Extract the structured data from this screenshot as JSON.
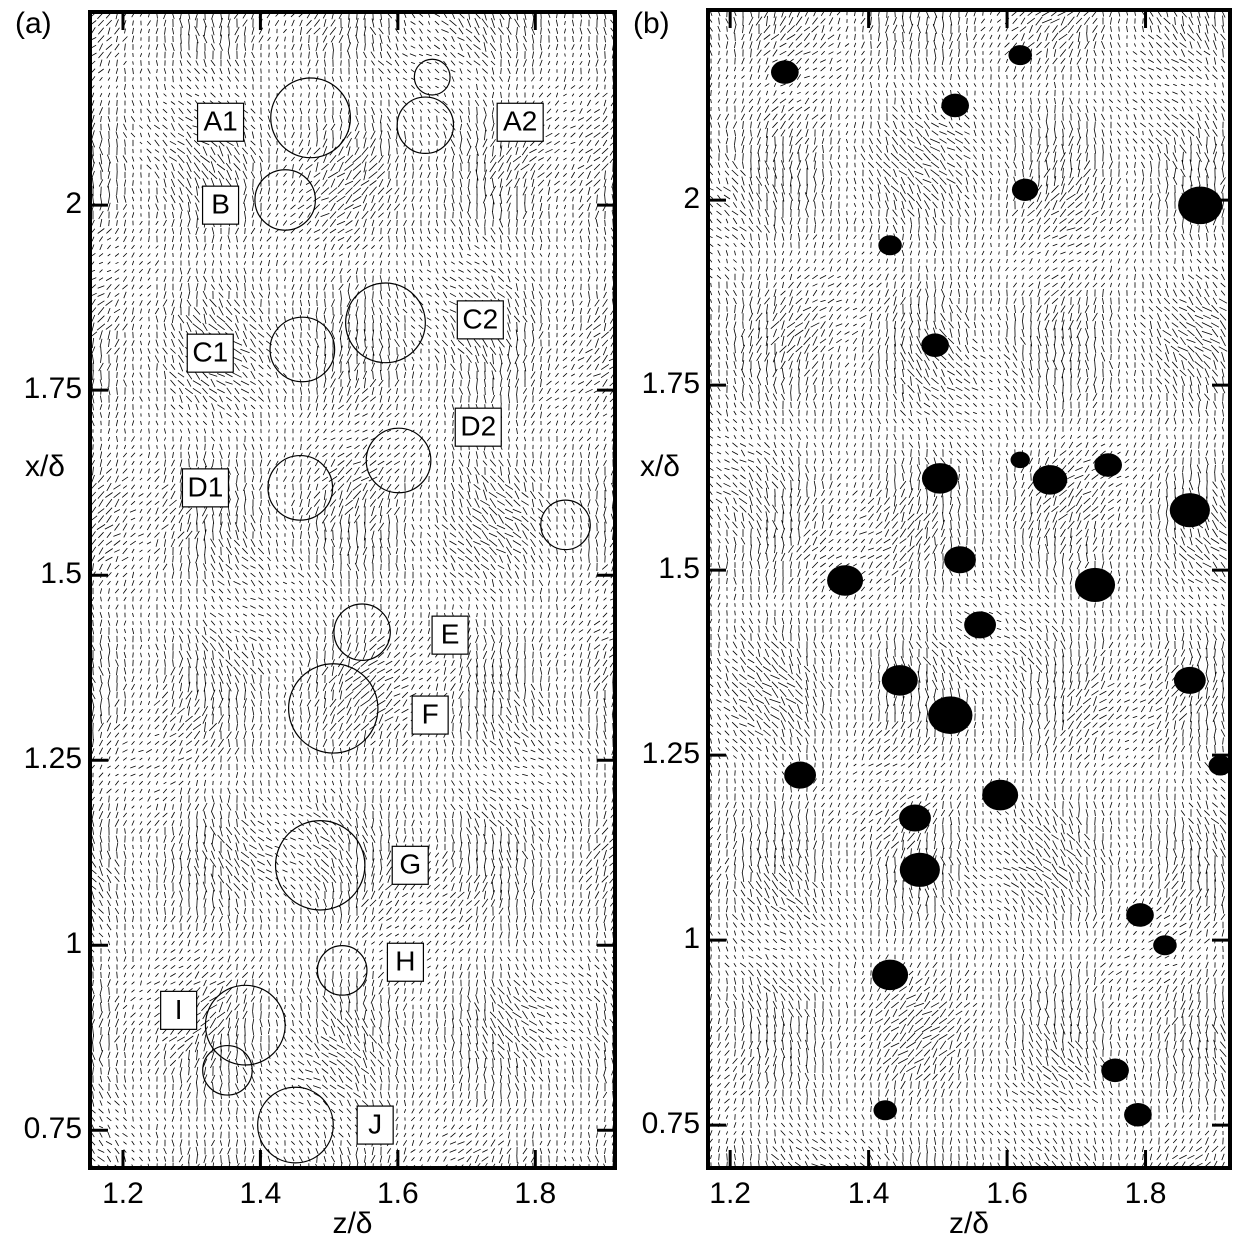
{
  "chart_data": [
    {
      "type": "vector",
      "label": "(a)",
      "xlabel": "z/δ",
      "ylabel": "x/δ",
      "xlim": [
        1.152,
        1.916
      ],
      "ylim": [
        0.699,
        2.261
      ],
      "xticks": [
        1.2,
        1.4,
        1.6,
        1.8
      ],
      "yticks": [
        0.75,
        1,
        1.25,
        1.5,
        1.75,
        2
      ],
      "annotations": [
        {
          "text": "A1",
          "z": 1.342,
          "x": 2.112
        },
        {
          "text": "A2",
          "z": 1.778,
          "x": 2.112
        },
        {
          "text": "B",
          "z": 1.342,
          "x": 2.0
        },
        {
          "text": "C1",
          "z": 1.327,
          "x": 1.8
        },
        {
          "text": "C2",
          "z": 1.72,
          "x": 1.845
        },
        {
          "text": "D1",
          "z": 1.32,
          "x": 1.618
        },
        {
          "text": "D2",
          "z": 1.717,
          "x": 1.7
        },
        {
          "text": "E",
          "z": 1.676,
          "x": 1.419
        },
        {
          "text": "F",
          "z": 1.647,
          "x": 1.311
        },
        {
          "text": "G",
          "z": 1.618,
          "x": 1.108
        },
        {
          "text": "H",
          "z": 1.611,
          "x": 0.977
        },
        {
          "text": "I",
          "z": 1.281,
          "x": 0.912
        },
        {
          "text": "J",
          "z": 1.567,
          "x": 0.757
        }
      ],
      "circles": [
        {
          "z": 1.473,
          "x": 2.118,
          "r": 0.058
        },
        {
          "z": 1.65,
          "x": 2.173,
          "r": 0.026
        },
        {
          "z": 1.64,
          "x": 2.108,
          "r": 0.041
        },
        {
          "z": 1.436,
          "x": 2.007,
          "r": 0.044
        },
        {
          "z": 1.582,
          "x": 1.841,
          "r": 0.058
        },
        {
          "z": 1.461,
          "x": 1.805,
          "r": 0.047
        },
        {
          "z": 1.601,
          "x": 1.655,
          "r": 0.047
        },
        {
          "z": 1.458,
          "x": 1.618,
          "r": 0.047
        },
        {
          "z": 1.548,
          "x": 1.423,
          "r": 0.041
        },
        {
          "z": 1.506,
          "x": 1.32,
          "r": 0.065
        },
        {
          "z": 1.487,
          "x": 1.108,
          "r": 0.065
        },
        {
          "z": 1.519,
          "x": 0.966,
          "r": 0.036
        },
        {
          "z": 1.378,
          "x": 0.892,
          "r": 0.058
        },
        {
          "z": 1.352,
          "x": 0.831,
          "r": 0.036
        },
        {
          "z": 1.451,
          "x": 0.757,
          "r": 0.055
        },
        {
          "z": 1.844,
          "x": 1.568,
          "r": 0.036
        }
      ]
    },
    {
      "type": "vector",
      "label": "(b)",
      "xlabel": "z/δ",
      "ylabel": "x/δ",
      "xlim": [
        1.168,
        1.922
      ],
      "ylim": [
        0.692,
        2.257
      ],
      "xticks": [
        1.2,
        1.4,
        1.6,
        1.8
      ],
      "yticks": [
        0.75,
        1,
        1.25,
        1.5,
        1.75,
        2
      ],
      "blobs": [
        {
          "z": 1.279,
          "x": 2.173,
          "r": 0.02
        },
        {
          "z": 1.619,
          "x": 2.196,
          "r": 0.017
        },
        {
          "z": 1.525,
          "x": 2.128,
          "r": 0.02
        },
        {
          "z": 1.626,
          "x": 2.014,
          "r": 0.019
        },
        {
          "z": 1.879,
          "x": 1.993,
          "r": 0.032
        },
        {
          "z": 1.431,
          "x": 1.939,
          "r": 0.017
        },
        {
          "z": 1.496,
          "x": 1.804,
          "r": 0.02
        },
        {
          "z": 1.503,
          "x": 1.624,
          "r": 0.026
        },
        {
          "z": 1.662,
          "x": 1.622,
          "r": 0.025
        },
        {
          "z": 1.864,
          "x": 1.581,
          "r": 0.029
        },
        {
          "z": 1.366,
          "x": 1.486,
          "r": 0.026
        },
        {
          "z": 1.532,
          "x": 1.514,
          "r": 0.023
        },
        {
          "z": 1.727,
          "x": 1.48,
          "r": 0.029
        },
        {
          "z": 1.561,
          "x": 1.426,
          "r": 0.023
        },
        {
          "z": 1.445,
          "x": 1.351,
          "r": 0.026
        },
        {
          "z": 1.864,
          "x": 1.351,
          "r": 0.023
        },
        {
          "z": 1.518,
          "x": 1.304,
          "r": 0.032
        },
        {
          "z": 1.301,
          "x": 1.223,
          "r": 0.023
        },
        {
          "z": 1.59,
          "x": 1.196,
          "r": 0.026
        },
        {
          "z": 1.467,
          "x": 1.165,
          "r": 0.023
        },
        {
          "z": 1.474,
          "x": 1.095,
          "r": 0.029
        },
        {
          "z": 1.431,
          "x": 0.953,
          "r": 0.026
        },
        {
          "z": 1.792,
          "x": 1.034,
          "r": 0.02
        },
        {
          "z": 1.828,
          "x": 0.993,
          "r": 0.017
        },
        {
          "z": 1.756,
          "x": 0.824,
          "r": 0.02
        },
        {
          "z": 1.424,
          "x": 0.77,
          "r": 0.017
        },
        {
          "z": 1.789,
          "x": 0.764,
          "r": 0.02
        },
        {
          "z": 1.746,
          "x": 1.642,
          "r": 0.02
        },
        {
          "z": 1.619,
          "x": 1.649,
          "r": 0.014
        },
        {
          "z": 1.908,
          "x": 1.236,
          "r": 0.017
        }
      ]
    }
  ]
}
